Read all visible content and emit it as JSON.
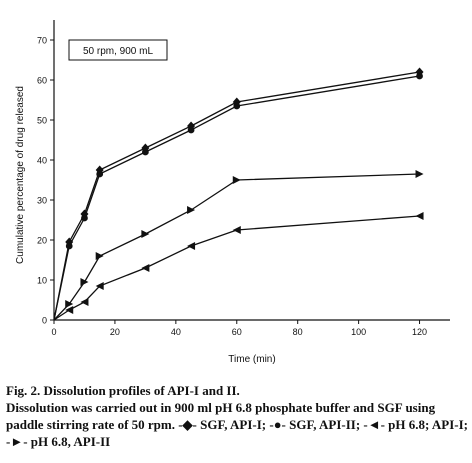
{
  "chart_data": {
    "type": "line",
    "title": "",
    "annotation": "50 rpm, 900 mL",
    "xlabel": "Time (min)",
    "ylabel": "Cumulative percentage of drug released",
    "xlim": [
      0,
      130
    ],
    "ylim": [
      0,
      75
    ],
    "x_ticks": [
      "0",
      "20",
      "40",
      "60",
      "80",
      "100",
      "120"
    ],
    "y_ticks": [
      "0",
      "10",
      "20",
      "30",
      "40",
      "50",
      "60",
      "70"
    ],
    "grid": false,
    "legend": "none",
    "series": [
      {
        "marker": "diamond",
        "x": [
          0,
          5,
          10,
          15,
          30,
          45,
          60,
          120
        ],
        "values": [
          0,
          19.5,
          26.5,
          37.5,
          43,
          48.5,
          54.5,
          62
        ]
      },
      {
        "marker": "circle",
        "x": [
          0,
          5,
          10,
          15,
          30,
          45,
          60,
          120
        ],
        "values": [
          0,
          18.5,
          25.5,
          36.5,
          42,
          47.5,
          53.5,
          61
        ]
      },
      {
        "marker": "triangle-left",
        "x": [
          0,
          5,
          10,
          15,
          30,
          45,
          60,
          120
        ],
        "values": [
          0,
          2.5,
          4.5,
          8.5,
          13,
          18.5,
          22.5,
          26
        ]
      },
      {
        "marker": "triangle-right",
        "x": [
          0,
          5,
          10,
          15,
          30,
          45,
          60,
          120
        ],
        "values": [
          0,
          4,
          9.5,
          16,
          21.5,
          27.5,
          35,
          36.5
        ]
      }
    ]
  },
  "caption": {
    "title": "Fig. 2. Dissolution profiles of API-I and II.",
    "body": "Dissolution was carried out in 900 ml pH 6.8 phosphate buffer and SGF using paddle stirring rate of 50 rpm. -◆- SGF, API-I; -●- SGF, API-II; -◄- pH 6.8; API-I; -►- pH 6.8, API-II"
  }
}
